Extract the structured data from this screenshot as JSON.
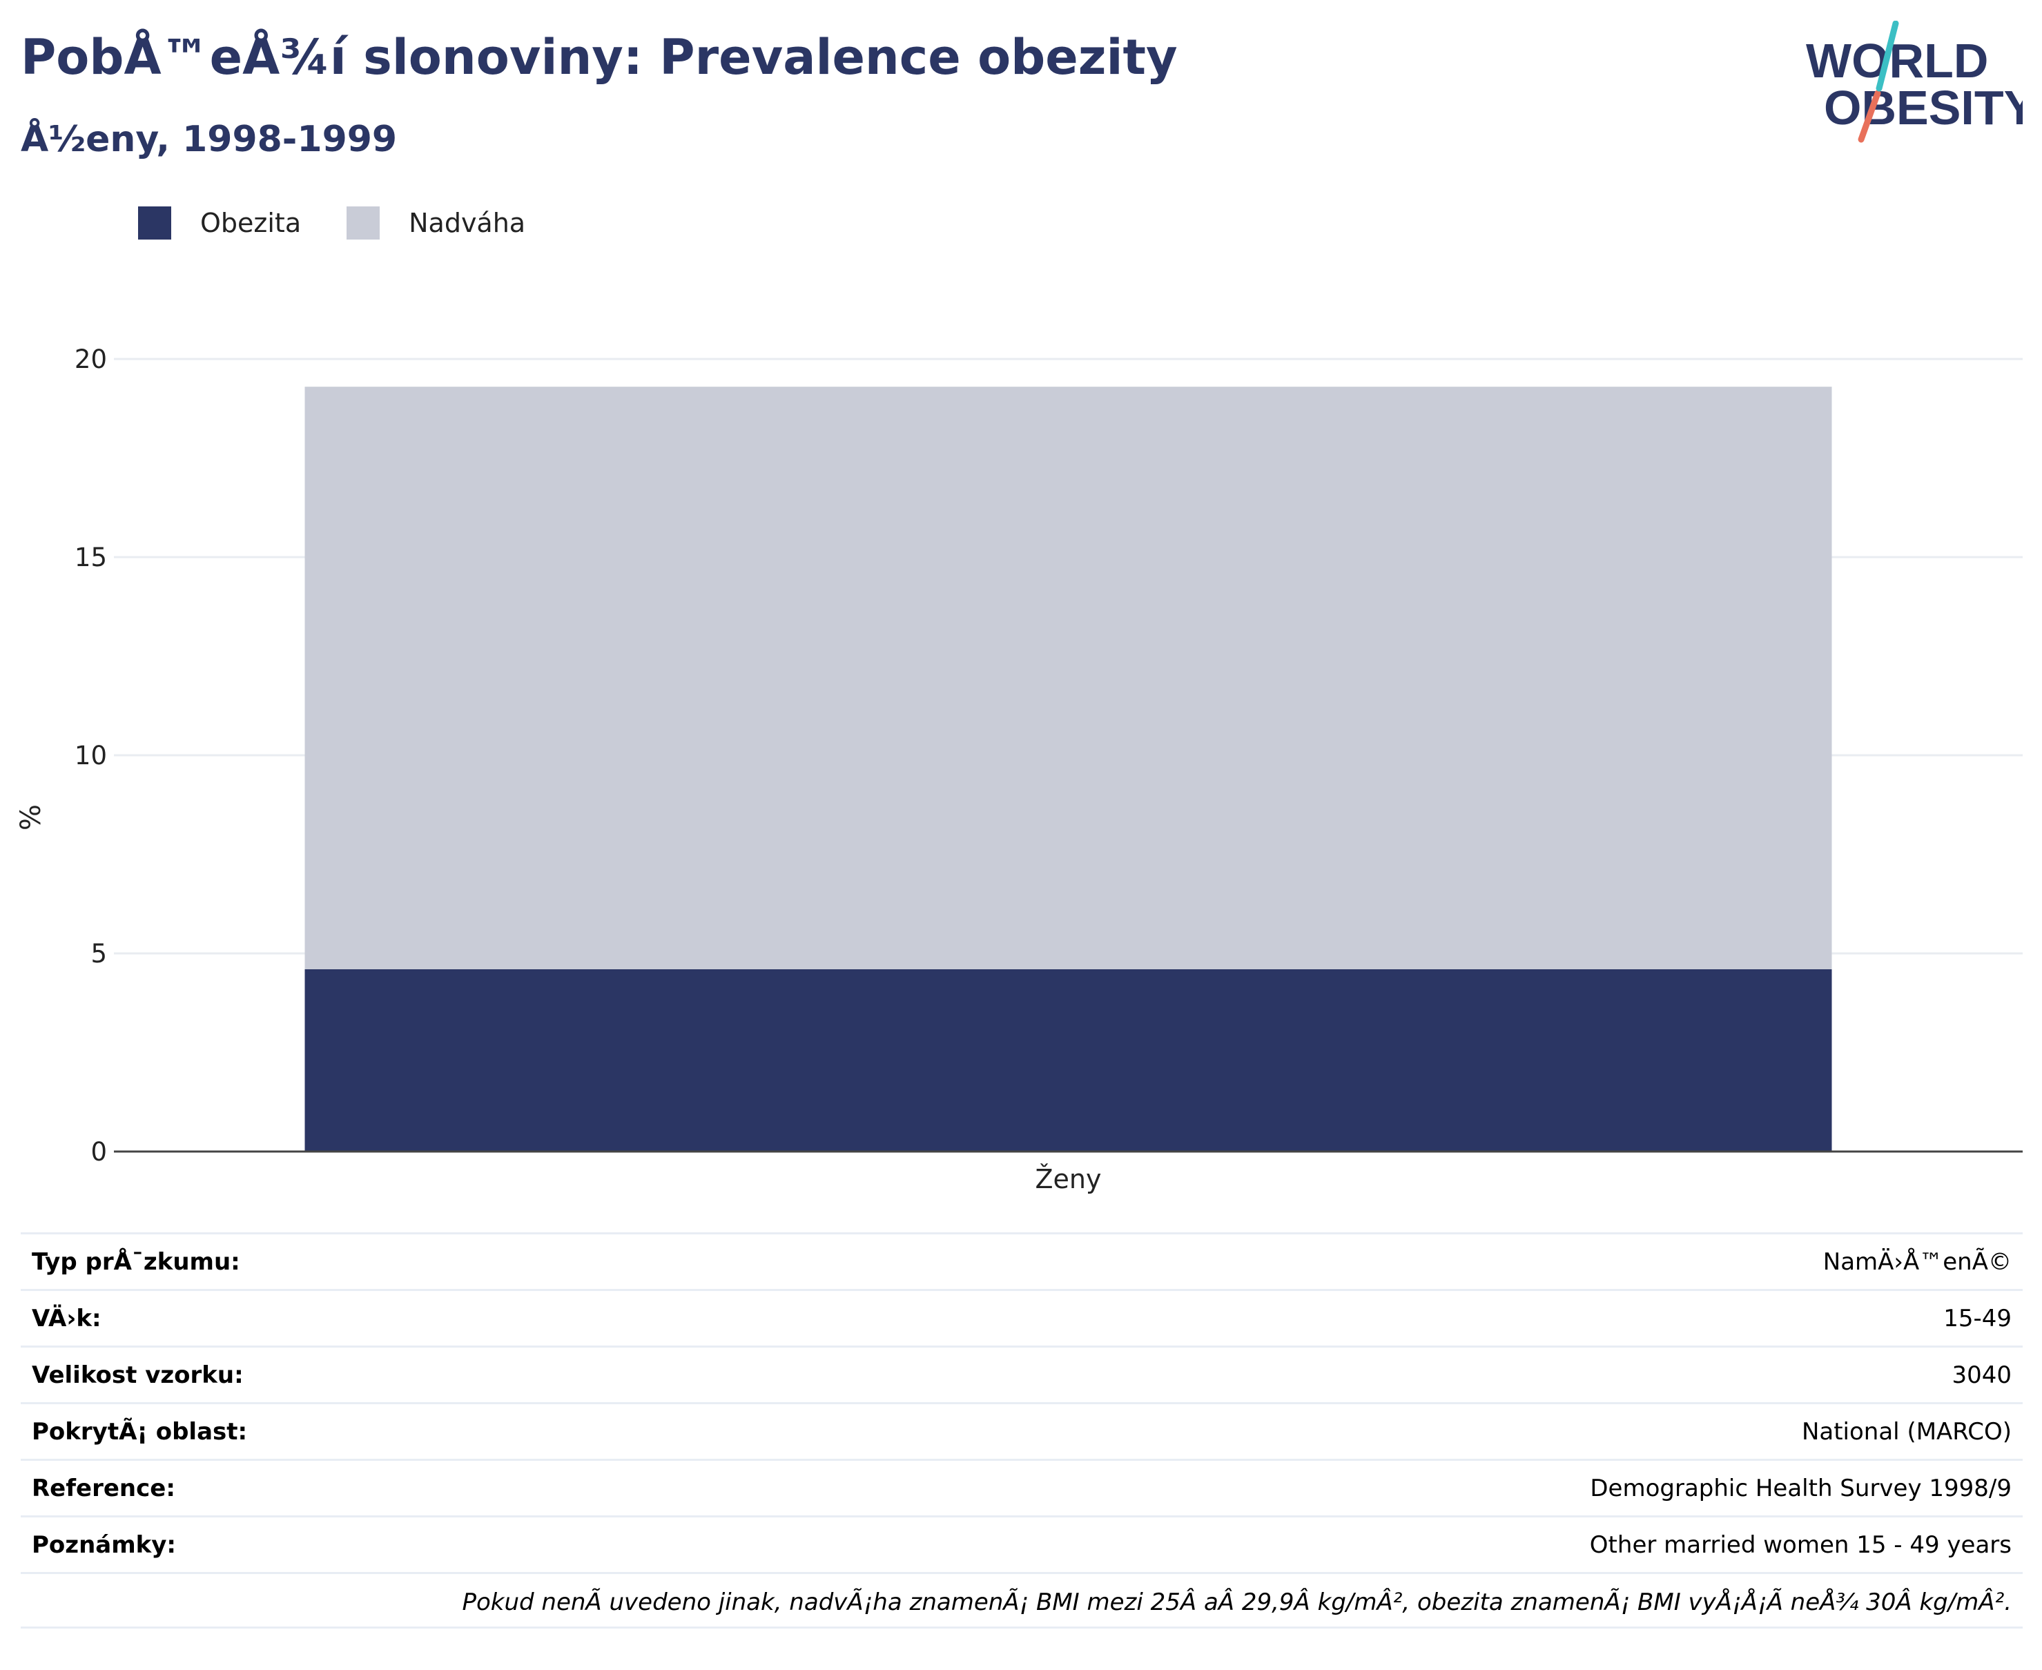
{
  "header": {
    "title": "PobÅ™eÅ¾í slonoviny: Prevalence obezity",
    "subtitle": "Å½eny, 1998-1999"
  },
  "logo": {
    "line1": "WORLD",
    "line2": "OBESITY"
  },
  "colors": {
    "obesity": "#2b3664",
    "overweight": "#c9ccd7",
    "accent_teal": "#3bbfc4",
    "accent_coral": "#e8705a"
  },
  "chart_data": {
    "type": "bar",
    "stacked": true,
    "categories": [
      "Ženy"
    ],
    "series": [
      {
        "name": "Obezita",
        "values": [
          4.6
        ]
      },
      {
        "name": "Nadváha",
        "values": [
          14.7
        ]
      }
    ],
    "title": "PobÅ™eÅ¾í slonoviny: Prevalence obezity",
    "subtitle": "Å½eny, 1998-1999",
    "xlabel": "",
    "ylabel": "%",
    "ylim": [
      0,
      20
    ],
    "yticks": [
      0,
      5,
      10,
      15,
      20
    ],
    "grid": true,
    "legend": "top-left"
  },
  "info_table": [
    {
      "label": "Typ prÅ¯zkumu:",
      "value": "NamÄ›Å™enÃ©"
    },
    {
      "label": "VÄ›k:",
      "value": "15-49"
    },
    {
      "label": "Velikost vzorku:",
      "value": "3040"
    },
    {
      "label": "PokrytÃ¡ oblast:",
      "value": "National (MARCO)"
    },
    {
      "label": "Reference:",
      "value": "Demographic Health Survey 1998/9"
    },
    {
      "label": "Poznámky:",
      "value": "Other married women 15 - 49 years"
    }
  ],
  "footnote": "Pokud nenÃ uvedeno jinak, nadvÃ¡ha znamenÃ¡ BMI mezi 25Â aÂ 29,9Â kg/mÂ², obezita znamenÃ¡ BMI vyÅ¡Å¡Ã neÅ¾ 30Â kg/mÂ²."
}
